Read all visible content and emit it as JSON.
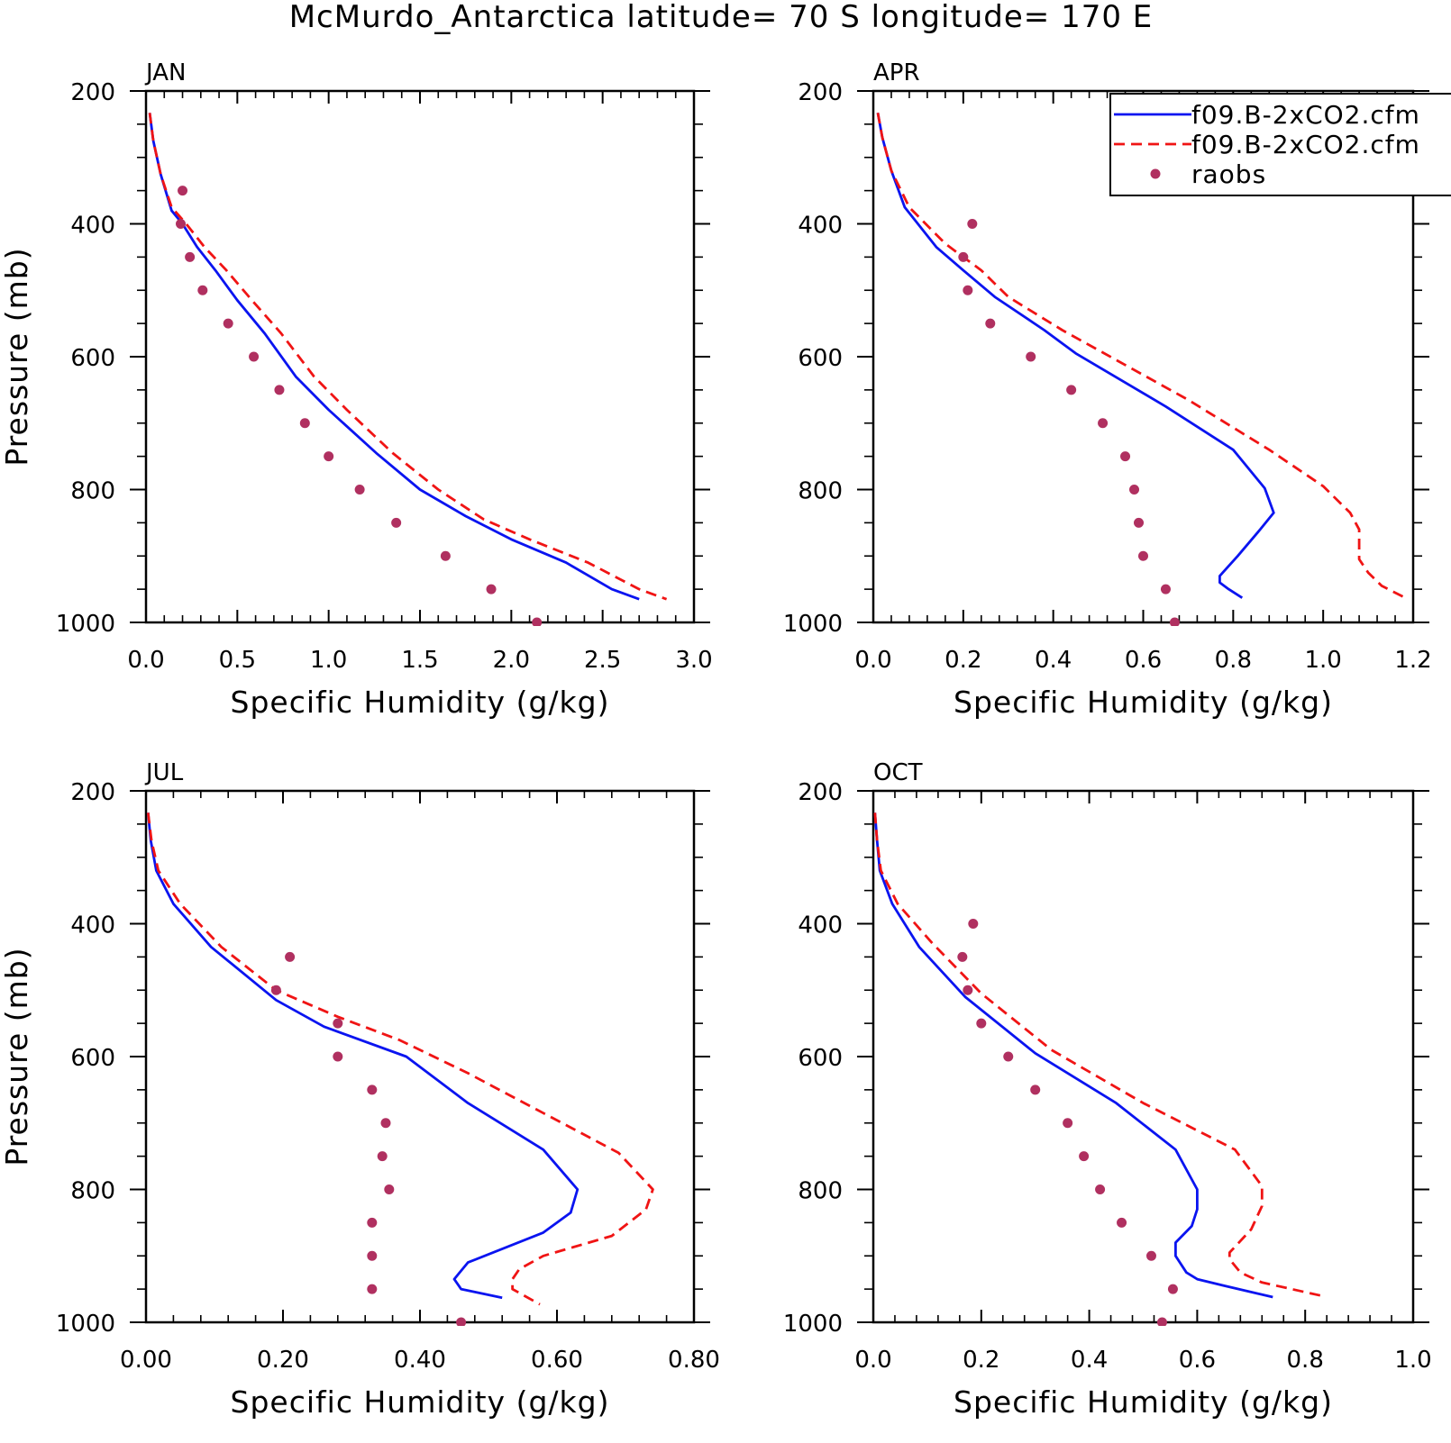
{
  "figure": {
    "title": "McMurdo_Antarctica  latitude= 70 S longitude= 170 E"
  },
  "colors": {
    "series_solid": "#0a14f0",
    "series_dashed": "#f01414",
    "raobs": "#b03060",
    "axes": "#000000"
  },
  "legend": {
    "placement": "top-right of APR panel (clipped at figure edge)",
    "entries": [
      {
        "label": "f09.B-2xCO2.cfm",
        "style": "solid",
        "color": "#0a14f0"
      },
      {
        "label": "f09.B-2xCO2.cfm",
        "style": "dashed",
        "color": "#f01414"
      },
      {
        "label": "raobs",
        "style": "dot",
        "color": "#b03060"
      }
    ]
  },
  "chart_data": [
    {
      "type": "line",
      "panel": "JAN",
      "xlabel": "Specific Humidity (g/kg)",
      "ylabel": "Pressure (mb)",
      "xlim": [
        0.0,
        3.0
      ],
      "ylim": [
        1000,
        200
      ],
      "y_inverted": true,
      "grid": false,
      "xticks": [
        0.0,
        0.5,
        1.0,
        1.5,
        2.0,
        2.5,
        3.0
      ],
      "xtick_labels": [
        "0.0",
        "0.5",
        "1.0",
        "1.5",
        "2.0",
        "2.5",
        "3.0"
      ],
      "yticks": [
        200,
        400,
        600,
        800,
        1000
      ],
      "ytick_labels": [
        "200",
        "400",
        "600",
        "800",
        "1000"
      ],
      "series": [
        {
          "style": "solid",
          "color": "#0a14f0",
          "x": [
            0.02,
            0.04,
            0.08,
            0.14,
            0.2,
            0.28,
            0.38,
            0.5,
            0.65,
            0.82,
            1.0,
            1.26,
            1.5,
            1.75,
            2.0,
            2.3,
            2.55,
            2.7
          ],
          "y": [
            233,
            275,
            325,
            380,
            400,
            435,
            470,
            515,
            565,
            630,
            680,
            745,
            800,
            840,
            875,
            910,
            950,
            965
          ]
        },
        {
          "style": "dashed",
          "color": "#f01414",
          "x": [
            0.02,
            0.04,
            0.08,
            0.14,
            0.22,
            0.32,
            0.44,
            0.58,
            0.74,
            0.92,
            1.1,
            1.35,
            1.6,
            1.85,
            2.1,
            2.42,
            2.7,
            2.85
          ],
          "y": [
            233,
            275,
            325,
            375,
            400,
            435,
            470,
            515,
            565,
            630,
            680,
            745,
            800,
            845,
            875,
            910,
            950,
            965
          ]
        },
        {
          "style": "dots",
          "color": "#b03060",
          "name": "raobs",
          "x": [
            0.2,
            0.19,
            0.24,
            0.31,
            0.45,
            0.59,
            0.73,
            0.87,
            1.0,
            1.17,
            1.37,
            1.64,
            1.89,
            2.14
          ],
          "y": [
            350,
            400,
            450,
            500,
            550,
            600,
            650,
            700,
            750,
            800,
            850,
            900,
            950,
            1000
          ]
        }
      ]
    },
    {
      "type": "line",
      "panel": "APR",
      "xlabel": "Specific Humidity (g/kg)",
      "ylabel": "",
      "xlim": [
        0.0,
        1.2
      ],
      "ylim": [
        1000,
        200
      ],
      "y_inverted": true,
      "grid": false,
      "xticks": [
        0.0,
        0.2,
        0.4,
        0.6,
        0.8,
        1.0,
        1.2
      ],
      "xtick_labels": [
        "0.0",
        "0.2",
        "0.4",
        "0.6",
        "0.8",
        "1.0",
        "1.2"
      ],
      "yticks": [
        200,
        400,
        600,
        800,
        1000
      ],
      "ytick_labels": [
        "200",
        "400",
        "600",
        "800",
        "1000"
      ],
      "series": [
        {
          "style": "solid",
          "color": "#0a14f0",
          "x": [
            0.01,
            0.02,
            0.04,
            0.07,
            0.14,
            0.2,
            0.27,
            0.38,
            0.45,
            0.65,
            0.8,
            0.87,
            0.89,
            0.86,
            0.81,
            0.77,
            0.77,
            0.79,
            0.82
          ],
          "y": [
            233,
            270,
            320,
            375,
            435,
            470,
            510,
            560,
            595,
            675,
            740,
            798,
            835,
            860,
            900,
            930,
            940,
            950,
            963
          ]
        },
        {
          "style": "dashed",
          "color": "#f01414",
          "x": [
            0.01,
            0.02,
            0.04,
            0.08,
            0.16,
            0.24,
            0.3,
            0.42,
            0.5,
            0.7,
            0.88,
            1.0,
            1.06,
            1.08,
            1.08,
            1.1,
            1.13,
            1.18
          ],
          "y": [
            233,
            270,
            320,
            375,
            430,
            470,
            510,
            560,
            590,
            665,
            740,
            795,
            835,
            860,
            905,
            925,
            945,
            962
          ]
        },
        {
          "style": "dots",
          "color": "#b03060",
          "name": "raobs",
          "x": [
            0.22,
            0.2,
            0.21,
            0.26,
            0.35,
            0.44,
            0.51,
            0.56,
            0.58,
            0.59,
            0.6,
            0.65,
            0.67
          ],
          "y": [
            400,
            450,
            500,
            550,
            600,
            650,
            700,
            750,
            800,
            850,
            900,
            950,
            1000
          ]
        }
      ]
    },
    {
      "type": "line",
      "panel": "JUL",
      "xlabel": "Specific Humidity (g/kg)",
      "ylabel": "Pressure (mb)",
      "xlim": [
        0.0,
        0.8
      ],
      "ylim": [
        1000,
        200
      ],
      "y_inverted": true,
      "grid": false,
      "xticks": [
        0.0,
        0.2,
        0.4,
        0.6,
        0.8
      ],
      "xtick_labels": [
        "0.00",
        "0.20",
        "0.40",
        "0.60",
        "0.80"
      ],
      "yticks": [
        200,
        400,
        600,
        800,
        1000
      ],
      "ytick_labels": [
        "200",
        "400",
        "600",
        "800",
        "1000"
      ],
      "series": [
        {
          "style": "solid",
          "color": "#0a14f0",
          "x": [
            0.003,
            0.007,
            0.015,
            0.04,
            0.095,
            0.19,
            0.26,
            0.38,
            0.47,
            0.58,
            0.63,
            0.62,
            0.58,
            0.47,
            0.45,
            0.46,
            0.52
          ],
          "y": [
            233,
            275,
            320,
            370,
            435,
            515,
            555,
            600,
            670,
            740,
            800,
            835,
            865,
            910,
            935,
            950,
            963
          ]
        },
        {
          "style": "dashed",
          "color": "#f01414",
          "x": [
            0.003,
            0.008,
            0.018,
            0.05,
            0.11,
            0.19,
            0.28,
            0.37,
            0.47,
            0.58,
            0.69,
            0.74,
            0.73,
            0.68,
            0.58,
            0.545,
            0.535,
            0.535,
            0.575
          ],
          "y": [
            233,
            275,
            320,
            370,
            435,
            500,
            540,
            575,
            625,
            685,
            745,
            800,
            830,
            870,
            900,
            920,
            935,
            950,
            973
          ]
        },
        {
          "style": "dots",
          "color": "#b03060",
          "name": "raobs",
          "x": [
            0.21,
            0.19,
            0.28,
            0.28,
            0.33,
            0.35,
            0.345,
            0.355,
            0.33,
            0.33,
            0.33,
            0.46
          ],
          "y": [
            450,
            500,
            550,
            600,
            650,
            700,
            750,
            800,
            850,
            900,
            950,
            1000
          ]
        }
      ]
    },
    {
      "type": "line",
      "panel": "OCT",
      "xlabel": "Specific Humidity (g/kg)",
      "ylabel": "",
      "xlim": [
        0.0,
        1.0
      ],
      "ylim": [
        1000,
        200
      ],
      "y_inverted": true,
      "grid": false,
      "xticks": [
        0.0,
        0.2,
        0.4,
        0.6,
        0.8,
        1.0
      ],
      "xtick_labels": [
        "0.0",
        "0.2",
        "0.4",
        "0.6",
        "0.8",
        "1.0"
      ],
      "yticks": [
        200,
        400,
        600,
        800,
        1000
      ],
      "ytick_labels": [
        "200",
        "400",
        "600",
        "800",
        "1000"
      ],
      "series": [
        {
          "style": "solid",
          "color": "#0a14f0",
          "x": [
            0.003,
            0.007,
            0.012,
            0.035,
            0.085,
            0.17,
            0.3,
            0.45,
            0.56,
            0.6,
            0.6,
            0.59,
            0.56,
            0.56,
            0.58,
            0.6,
            0.65,
            0.74
          ],
          "y": [
            233,
            275,
            320,
            370,
            435,
            510,
            595,
            670,
            740,
            800,
            830,
            855,
            880,
            900,
            925,
            935,
            945,
            962
          ]
        },
        {
          "style": "dashed",
          "color": "#f01414",
          "x": [
            0.003,
            0.007,
            0.014,
            0.045,
            0.11,
            0.2,
            0.33,
            0.5,
            0.67,
            0.72,
            0.72,
            0.7,
            0.66,
            0.66,
            0.68,
            0.72,
            0.83
          ],
          "y": [
            233,
            275,
            320,
            370,
            430,
            505,
            590,
            670,
            740,
            795,
            825,
            860,
            895,
            905,
            925,
            940,
            960
          ]
        },
        {
          "style": "dots",
          "color": "#b03060",
          "name": "raobs",
          "x": [
            0.185,
            0.165,
            0.175,
            0.2,
            0.25,
            0.3,
            0.36,
            0.39,
            0.42,
            0.46,
            0.515,
            0.555,
            0.535
          ],
          "y": [
            400,
            450,
            500,
            550,
            600,
            650,
            700,
            750,
            800,
            850,
            900,
            950,
            1000
          ]
        }
      ]
    }
  ]
}
